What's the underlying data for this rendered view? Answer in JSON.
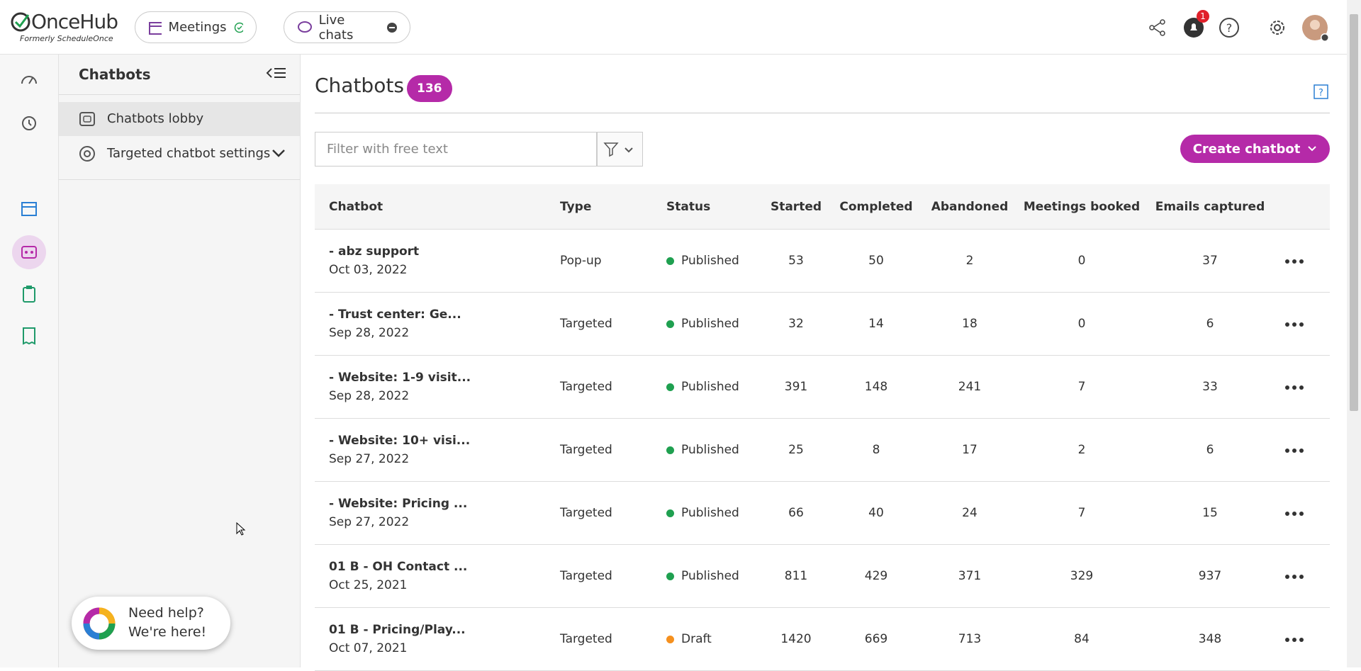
{
  "topbar": {
    "logo": "OnceHub",
    "logo_sub": "Formerly ScheduleOnce",
    "meetings": "Meetings",
    "live_chats": "Live chats",
    "notifications": "1"
  },
  "sidebar": {
    "title": "Chatbots",
    "items": [
      "Chatbots lobby",
      "Targeted chatbot settings"
    ]
  },
  "main": {
    "title": "Chatbots",
    "count": "136",
    "filter_placeholder": "Filter with free text",
    "create_button": "Create chatbot",
    "table": {
      "columns": [
        "Chatbot",
        "Type",
        "Status",
        "Started",
        "Completed",
        "Abandoned",
        "Meetings booked",
        "Emails captured"
      ],
      "rows": [
        {
          "name": "- abz support",
          "date": "Oct 03, 2022",
          "type": "Pop-up",
          "status": "Published",
          "status_color": "#1fa050",
          "started": 53,
          "completed": 50,
          "abandoned": 2,
          "meetings": 0,
          "emails": 37
        },
        {
          "name": "- Trust center: Ge...",
          "date": "Sep 28, 2022",
          "type": "Targeted",
          "status": "Published",
          "status_color": "#1fa050",
          "started": 32,
          "completed": 14,
          "abandoned": 18,
          "meetings": 0,
          "emails": 6
        },
        {
          "name": "- Website: 1-9 visit...",
          "date": "Sep 28, 2022",
          "type": "Targeted",
          "status": "Published",
          "status_color": "#1fa050",
          "started": 391,
          "completed": 148,
          "abandoned": 241,
          "meetings": 7,
          "emails": 33
        },
        {
          "name": "- Website: 10+ visi...",
          "date": "Sep 27, 2022",
          "type": "Targeted",
          "status": "Published",
          "status_color": "#1fa050",
          "started": 25,
          "completed": 8,
          "abandoned": 17,
          "meetings": 2,
          "emails": 6
        },
        {
          "name": "- Website: Pricing ...",
          "date": "Sep 27, 2022",
          "type": "Targeted",
          "status": "Published",
          "status_color": "#1fa050",
          "started": 66,
          "completed": 40,
          "abandoned": 24,
          "meetings": 7,
          "emails": 15
        },
        {
          "name": "01 B - OH Contact ...",
          "date": "Oct 25, 2021",
          "type": "Targeted",
          "status": "Published",
          "status_color": "#1fa050",
          "started": 811,
          "completed": 429,
          "abandoned": 371,
          "meetings": 329,
          "emails": 937
        },
        {
          "name": "01 B - Pricing/Play...",
          "date": "Oct 07, 2021",
          "type": "Targeted",
          "status": "Draft",
          "status_color": "#f5901e",
          "started": 1420,
          "completed": 669,
          "abandoned": 713,
          "meetings": 84,
          "emails": 348
        }
      ]
    }
  },
  "help_widget": {
    "line1": "Need help?",
    "line2": "We're here!"
  }
}
